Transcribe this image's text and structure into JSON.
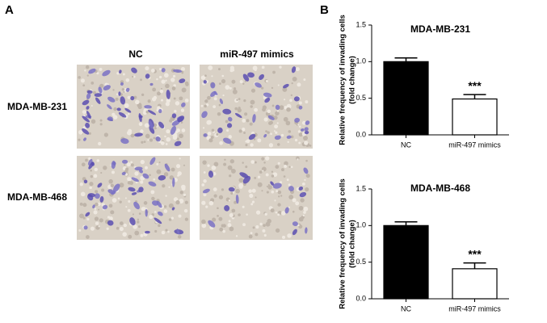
{
  "panel_a": {
    "label": "A",
    "columns": [
      "NC",
      "miR-497 mimics"
    ],
    "rows": [
      "MDA-MB-231",
      "MDA-MB-468"
    ]
  },
  "panel_b": {
    "label": "B"
  },
  "chart_data": [
    {
      "type": "bar",
      "title": "MDA-MB-231",
      "ylabel": [
        "Relative frequency of invading cells",
        "(fold change)"
      ],
      "categories": [
        "NC",
        "miR-497 mimics"
      ],
      "values": [
        1.0,
        0.49
      ],
      "errors": [
        0.05,
        0.06
      ],
      "colors": [
        "#000000",
        "#ffffff"
      ],
      "significance": [
        null,
        "***"
      ],
      "ylim": [
        0,
        1.5
      ],
      "yticks": [
        {
          "value": 0,
          "label": "0.0"
        },
        {
          "value": 0.5,
          "label": "0.5"
        },
        {
          "value": 1,
          "label": "1.0"
        },
        {
          "value": 1.5,
          "label": "1.5"
        }
      ]
    },
    {
      "type": "bar",
      "title": "MDA-MB-468",
      "ylabel": [
        "Relative frequency of invading cells",
        "(fold change)"
      ],
      "categories": [
        "NC",
        "miR-497 mimics"
      ],
      "values": [
        1.0,
        0.41
      ],
      "errors": [
        0.05,
        0.08
      ],
      "colors": [
        "#000000",
        "#ffffff"
      ],
      "significance": [
        null,
        "***"
      ],
      "ylim": [
        0,
        1.5
      ],
      "yticks": [
        {
          "value": 0,
          "label": "0.0"
        },
        {
          "value": 0.5,
          "label": "0.5"
        },
        {
          "value": 1,
          "label": "1.0"
        },
        {
          "value": 1.5,
          "label": "1.5"
        }
      ]
    }
  ]
}
